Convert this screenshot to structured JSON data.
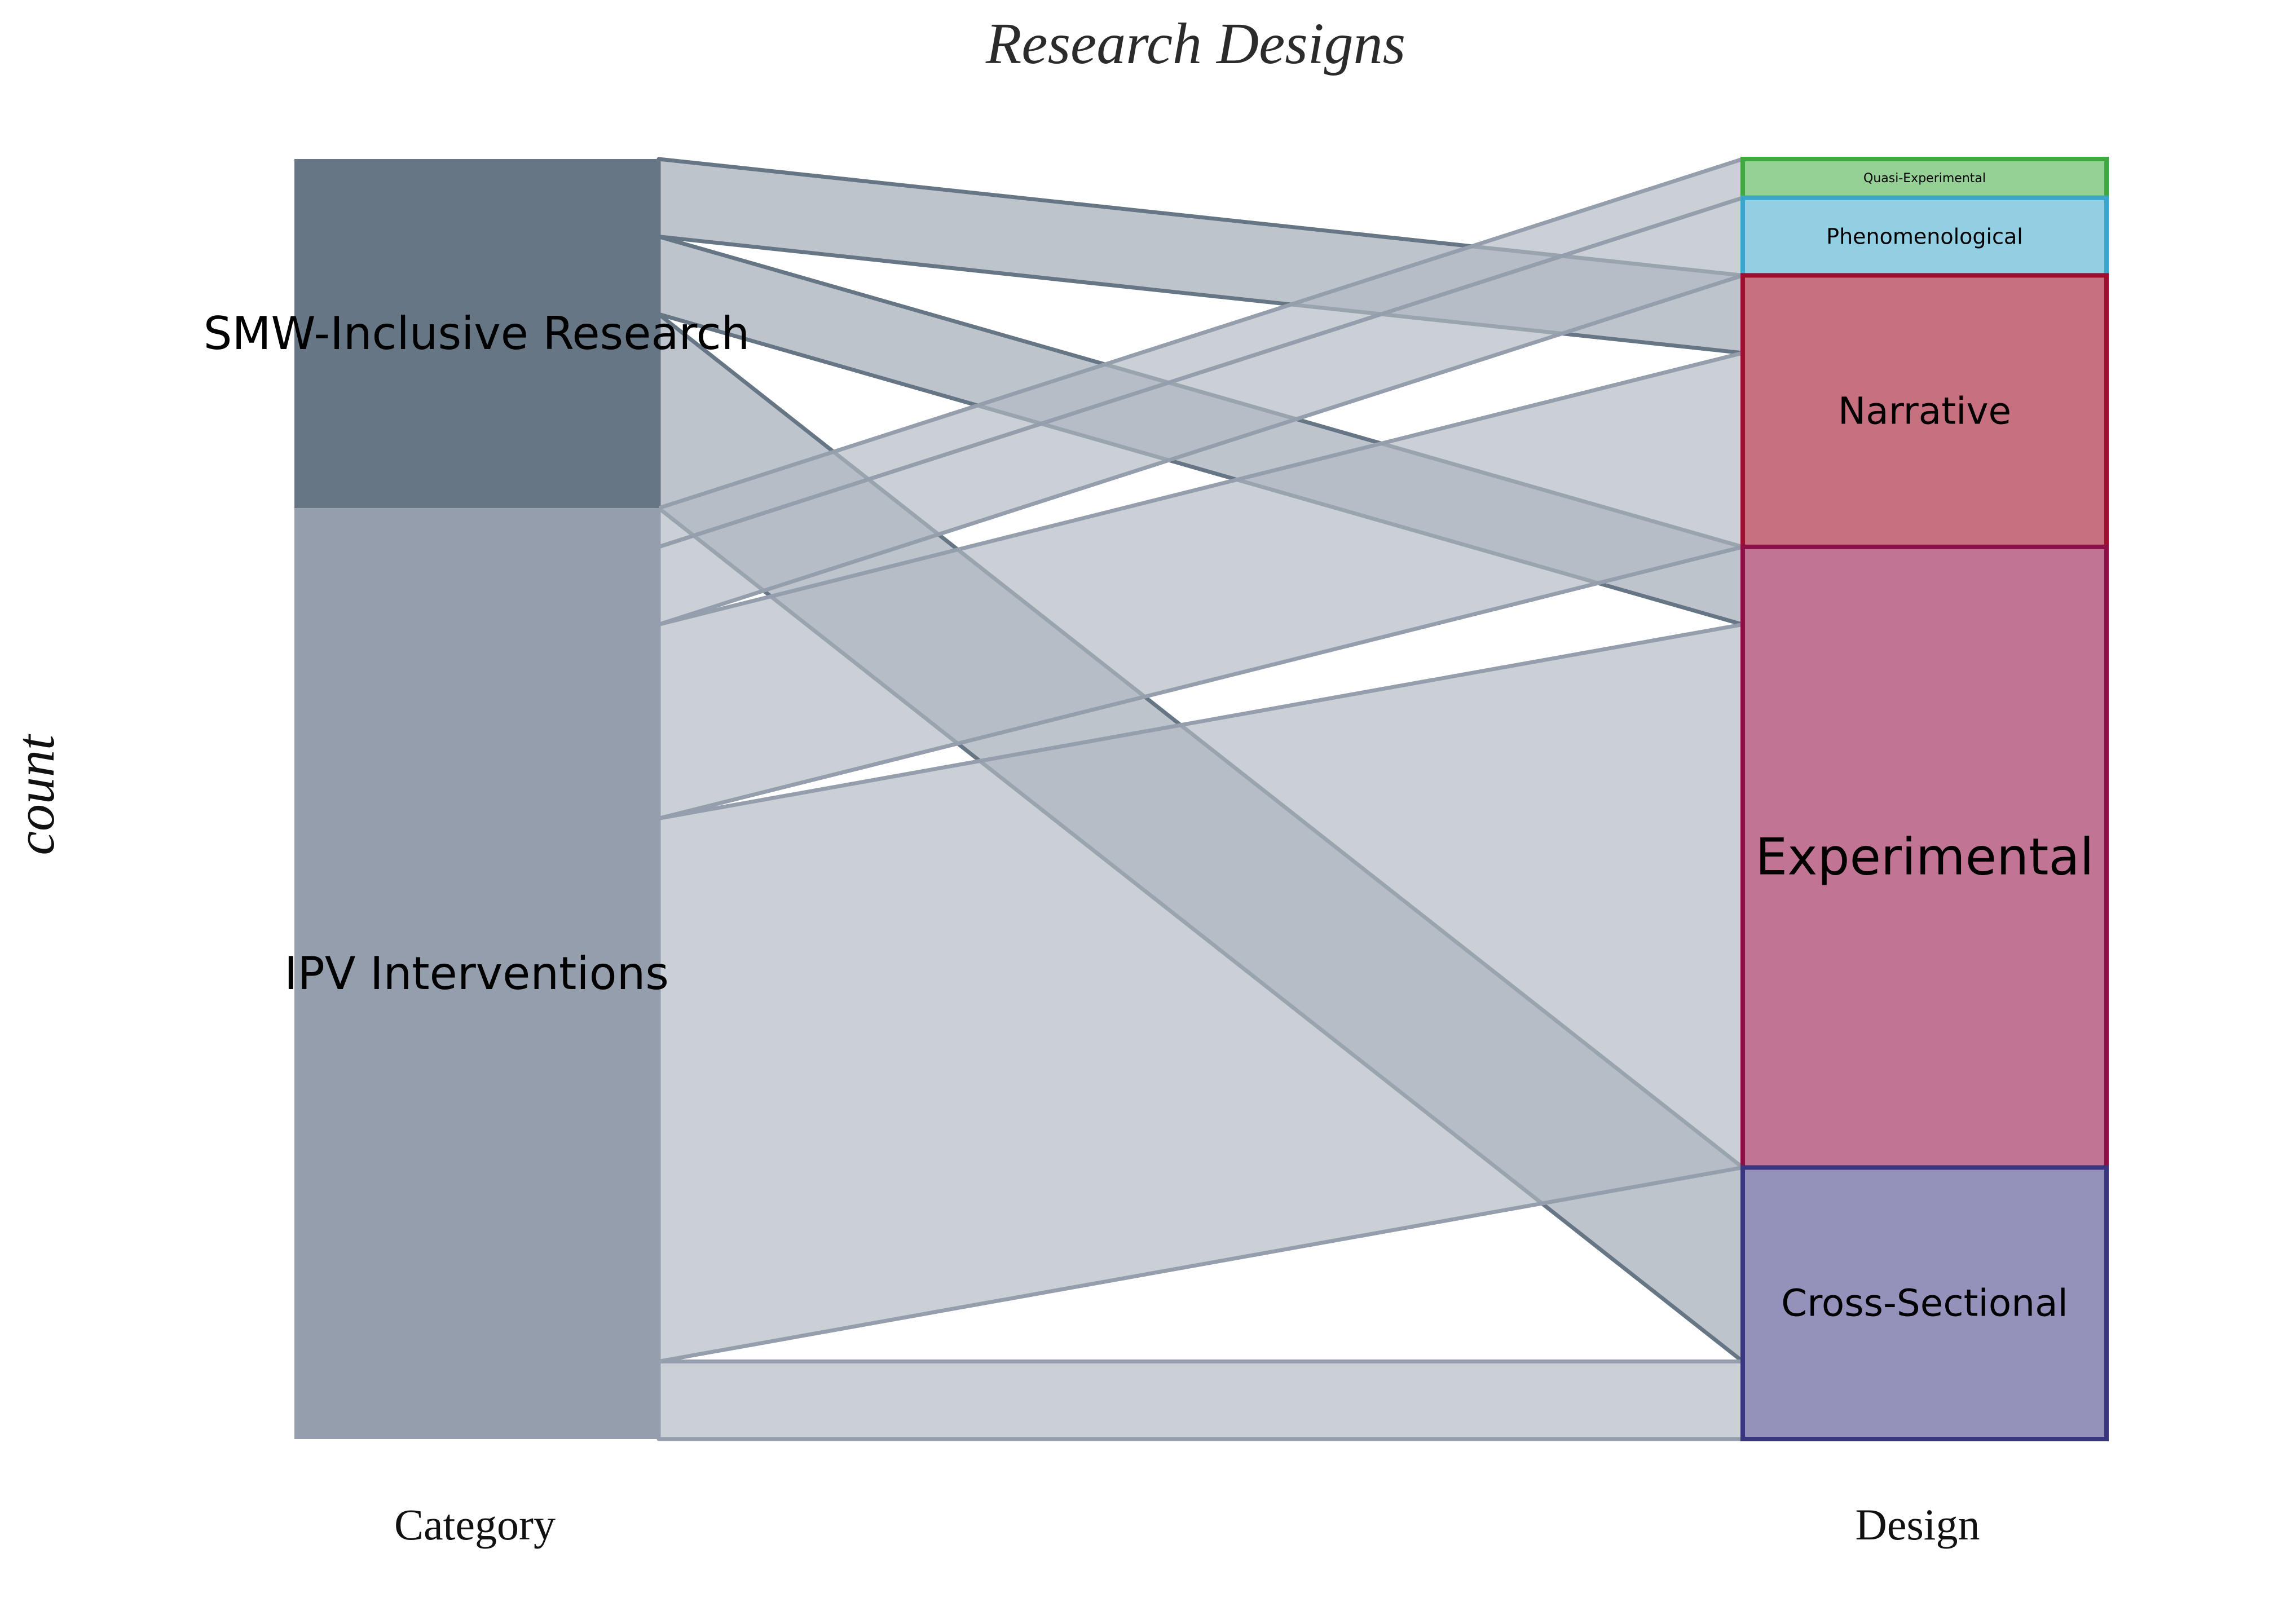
{
  "chart_data": {
    "type": "alluvial",
    "title": "Research Designs",
    "ylabel": "count",
    "axes": [
      {
        "name": "Category",
        "label": "Category"
      },
      {
        "name": "Design",
        "label": "Design"
      }
    ],
    "nodes": {
      "Category": [
        {
          "name": "SMW-Inclusive Research",
          "value": 9,
          "color": "#667685"
        },
        {
          "name": "IPV Interventions",
          "value": 24,
          "color": "#959eac"
        }
      ],
      "Design": [
        {
          "name": "Quasi-Experimental",
          "value": 1,
          "color": "#95d095",
          "stroke": "#3fa93f"
        },
        {
          "name": "Phenomenological",
          "value": 2,
          "color": "#93cfe3",
          "stroke": "#3da4cd"
        },
        {
          "name": "Narrative",
          "value": 7,
          "color": "#c77180",
          "stroke": "#9e1030"
        },
        {
          "name": "Experimental",
          "value": 16,
          "color": "#c27495",
          "stroke": "#8c1045"
        },
        {
          "name": "Cross-Sectional",
          "value": 7,
          "color": "#9491bb",
          "stroke": "#3a3580"
        }
      ]
    },
    "flows": [
      {
        "from": "SMW-Inclusive Research",
        "to": "Narrative",
        "value": 2
      },
      {
        "from": "SMW-Inclusive Research",
        "to": "Experimental",
        "value": 2
      },
      {
        "from": "SMW-Inclusive Research",
        "to": "Cross-Sectional",
        "value": 5
      },
      {
        "from": "IPV Interventions",
        "to": "Quasi-Experimental",
        "value": 1
      },
      {
        "from": "IPV Interventions",
        "to": "Phenomenological",
        "value": 2
      },
      {
        "from": "IPV Interventions",
        "to": "Narrative",
        "value": 5
      },
      {
        "from": "IPV Interventions",
        "to": "Experimental",
        "value": 14
      },
      {
        "from": "IPV Interventions",
        "to": "Cross-Sectional",
        "value": 2
      }
    ],
    "colors": {
      "flow_smw": "#667685",
      "flow_ipv": "#959eac",
      "flow_fill": "#b3bac3"
    }
  }
}
